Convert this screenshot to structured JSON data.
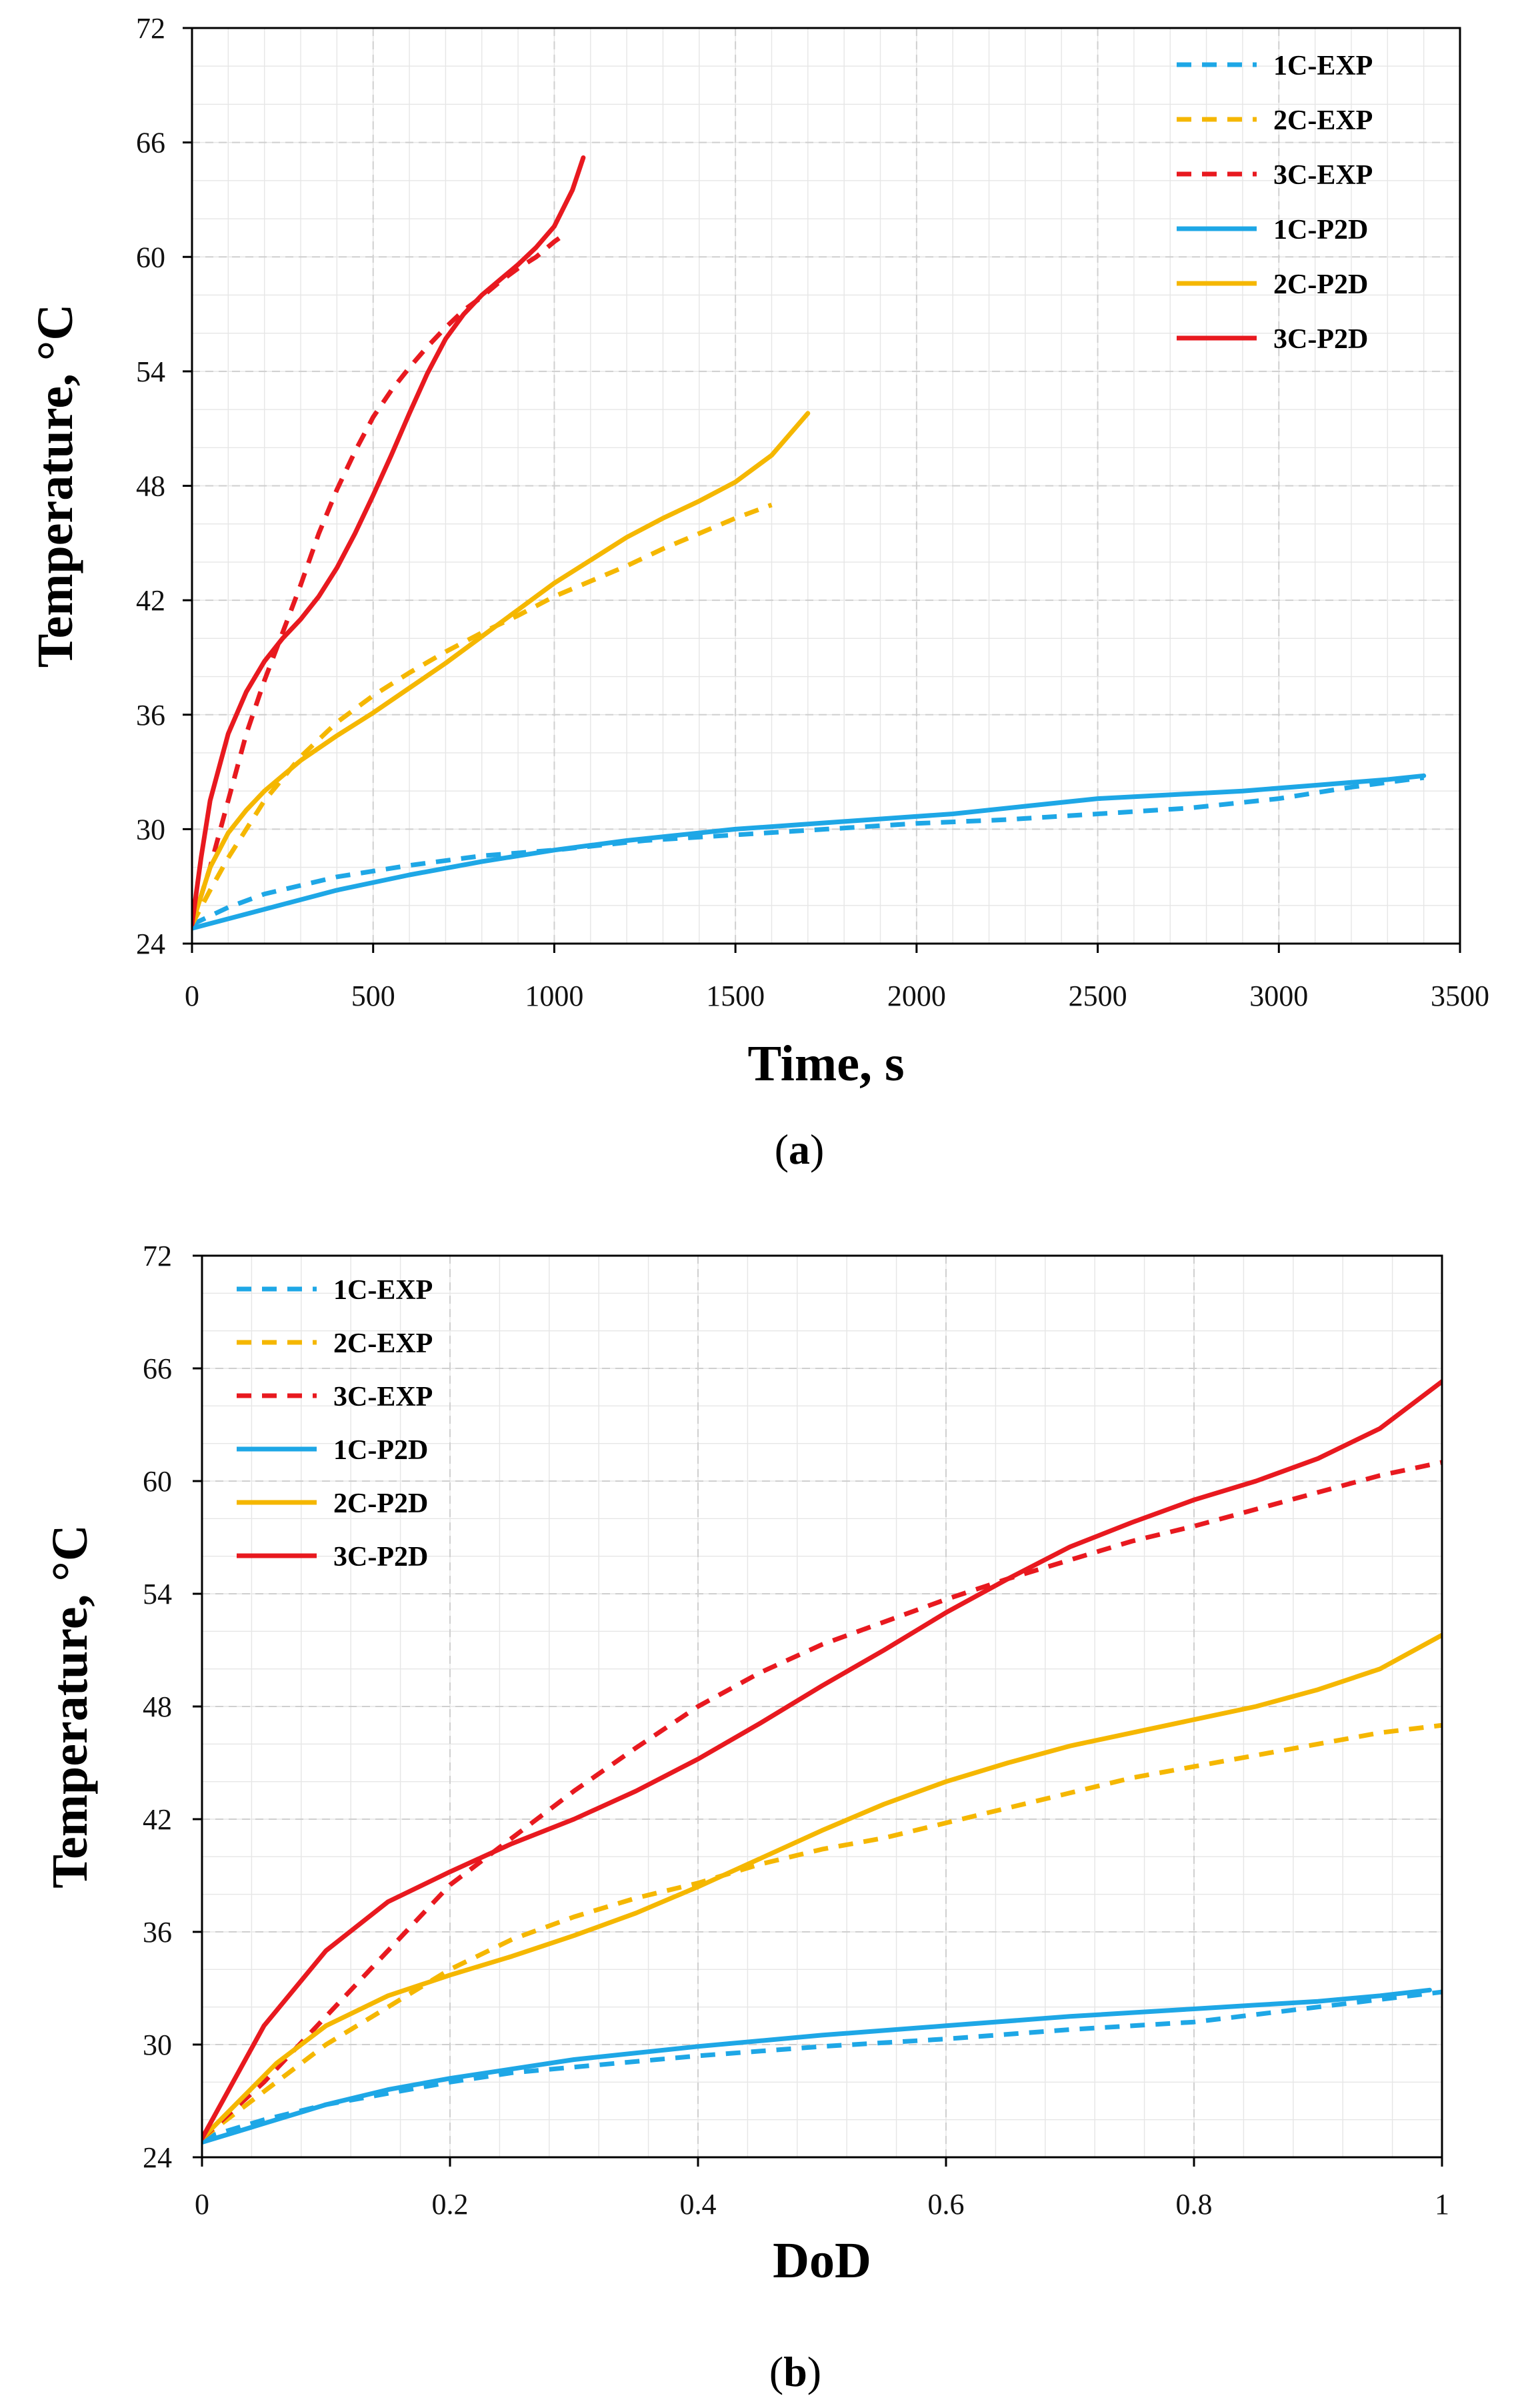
{
  "colors": {
    "1C": "#1ea7e6",
    "2C": "#f5b700",
    "3C": "#e8191f"
  },
  "chart_data": [
    {
      "type": "line",
      "panel_label": "(a)",
      "caption": {
        "open": "(",
        "letter": "a",
        "close": ")"
      },
      "xlabel": "Time, s",
      "ylabel": "Temperature, °C",
      "xlim": [
        0,
        3500
      ],
      "ylim": [
        24,
        72
      ],
      "xticks": [
        0,
        500,
        1000,
        1500,
        2000,
        2500,
        3000,
        3500
      ],
      "yticks": [
        24,
        30,
        36,
        42,
        48,
        54,
        60,
        66,
        72
      ],
      "xminor": 100,
      "yminor": 2,
      "grid": true,
      "legend_position": "top-right",
      "series": [
        {
          "name": "1C-EXP",
          "color_key": "1C",
          "style": "dashed",
          "x": [
            0,
            100,
            200,
            400,
            600,
            800,
            1000,
            1250,
            1500,
            1750,
            2000,
            2250,
            2500,
            2750,
            3000,
            3200,
            3400
          ],
          "y": [
            25.0,
            25.9,
            26.6,
            27.5,
            28.1,
            28.6,
            28.9,
            29.4,
            29.7,
            30.0,
            30.3,
            30.5,
            30.8,
            31.1,
            31.6,
            32.2,
            32.7
          ]
        },
        {
          "name": "2C-EXP",
          "color_key": "2C",
          "style": "dashed",
          "x": [
            0,
            50,
            100,
            150,
            200,
            300,
            400,
            500,
            600,
            700,
            800,
            900,
            1000,
            1100,
            1200,
            1300,
            1400,
            1500,
            1600
          ],
          "y": [
            25.0,
            26.8,
            28.5,
            30.0,
            31.5,
            33.8,
            35.6,
            37.0,
            38.2,
            39.3,
            40.3,
            41.2,
            42.2,
            43.0,
            43.8,
            44.7,
            45.5,
            46.3,
            47.0
          ]
        },
        {
          "name": "3C-EXP",
          "color_key": "3C",
          "style": "dashed",
          "x": [
            0,
            50,
            100,
            150,
            200,
            250,
            300,
            350,
            400,
            450,
            500,
            550,
            600,
            650,
            700,
            750,
            800,
            850,
            900,
            950,
            1000,
            1030
          ],
          "y": [
            25.0,
            28.0,
            31.5,
            35.0,
            37.8,
            40.3,
            42.8,
            45.5,
            47.8,
            49.8,
            51.6,
            53.0,
            54.2,
            55.3,
            56.3,
            57.2,
            57.9,
            58.7,
            59.4,
            60.0,
            60.8,
            61.2
          ]
        },
        {
          "name": "1C-P2D",
          "color_key": "1C",
          "style": "solid",
          "x": [
            0,
            200,
            400,
            600,
            800,
            1000,
            1200,
            1500,
            1800,
            2100,
            2300,
            2500,
            2700,
            2900,
            3100,
            3300,
            3400
          ],
          "y": [
            24.8,
            25.8,
            26.8,
            27.6,
            28.3,
            28.9,
            29.4,
            30.0,
            30.4,
            30.8,
            31.2,
            31.6,
            31.8,
            32.0,
            32.3,
            32.6,
            32.8
          ]
        },
        {
          "name": "2C-P2D",
          "color_key": "2C",
          "style": "solid",
          "x": [
            0,
            50,
            100,
            150,
            200,
            300,
            400,
            500,
            600,
            700,
            800,
            900,
            1000,
            1100,
            1200,
            1300,
            1400,
            1500,
            1600,
            1700
          ],
          "y": [
            25.0,
            28.0,
            29.8,
            31.0,
            32.0,
            33.6,
            34.9,
            36.1,
            37.4,
            38.7,
            40.1,
            41.5,
            42.9,
            44.1,
            45.3,
            46.3,
            47.2,
            48.2,
            49.6,
            51.8
          ]
        },
        {
          "name": "3C-P2D",
          "color_key": "3C",
          "style": "solid",
          "x": [
            0,
            25,
            50,
            100,
            150,
            200,
            250,
            300,
            350,
            400,
            450,
            500,
            550,
            600,
            650,
            700,
            750,
            800,
            850,
            900,
            950,
            1000,
            1050,
            1080
          ],
          "y": [
            25.0,
            28.5,
            31.5,
            35.0,
            37.2,
            38.8,
            40.0,
            41.0,
            42.2,
            43.7,
            45.5,
            47.5,
            49.6,
            51.8,
            53.9,
            55.7,
            57.0,
            58.0,
            58.8,
            59.6,
            60.5,
            61.6,
            63.5,
            65.2
          ]
        }
      ]
    },
    {
      "type": "line",
      "panel_label": "(b)",
      "caption": {
        "open": "(",
        "letter": "b",
        "close": ")"
      },
      "xlabel": "DoD",
      "ylabel": "Temperature, °C",
      "xlim": [
        0,
        1
      ],
      "ylim": [
        24,
        72
      ],
      "xticks": [
        0,
        0.2,
        0.4,
        0.6,
        0.8,
        1
      ],
      "yticks": [
        24,
        30,
        36,
        42,
        48,
        54,
        60,
        66,
        72
      ],
      "xminor": 0.04,
      "yminor": 2,
      "grid": true,
      "legend_position": "top-left",
      "series": [
        {
          "name": "1C-EXP",
          "color_key": "1C",
          "style": "dashed",
          "x": [
            0,
            0.05,
            0.1,
            0.15,
            0.2,
            0.25,
            0.3,
            0.4,
            0.5,
            0.6,
            0.7,
            0.8,
            0.85,
            0.9,
            0.95,
            1.0
          ],
          "y": [
            25.0,
            26.0,
            26.8,
            27.4,
            28.0,
            28.5,
            28.8,
            29.4,
            29.9,
            30.3,
            30.8,
            31.2,
            31.6,
            32.0,
            32.4,
            32.8
          ]
        },
        {
          "name": "2C-EXP",
          "color_key": "2C",
          "style": "dashed",
          "x": [
            0,
            0.03,
            0.06,
            0.1,
            0.15,
            0.2,
            0.25,
            0.3,
            0.35,
            0.4,
            0.45,
            0.5,
            0.55,
            0.6,
            0.65,
            0.7,
            0.75,
            0.8,
            0.85,
            0.9,
            0.95,
            1.0
          ],
          "y": [
            25.0,
            26.5,
            28.0,
            30.0,
            32.0,
            34.0,
            35.6,
            36.8,
            37.8,
            38.6,
            39.6,
            40.4,
            41.0,
            41.8,
            42.6,
            43.4,
            44.2,
            44.8,
            45.4,
            46.0,
            46.6,
            47.0
          ]
        },
        {
          "name": "3C-EXP",
          "color_key": "3C",
          "style": "dashed",
          "x": [
            0,
            0.05,
            0.1,
            0.15,
            0.2,
            0.25,
            0.3,
            0.35,
            0.4,
            0.45,
            0.5,
            0.55,
            0.6,
            0.65,
            0.7,
            0.75,
            0.8,
            0.85,
            0.9,
            0.95,
            1.0
          ],
          "y": [
            25.0,
            28.0,
            31.5,
            35.0,
            38.5,
            41.0,
            43.5,
            45.8,
            48.0,
            49.8,
            51.3,
            52.5,
            53.7,
            54.8,
            55.8,
            56.8,
            57.6,
            58.5,
            59.4,
            60.3,
            61.0
          ]
        },
        {
          "name": "1C-P2D",
          "color_key": "1C",
          "style": "solid",
          "x": [
            0,
            0.05,
            0.1,
            0.15,
            0.2,
            0.3,
            0.4,
            0.5,
            0.6,
            0.7,
            0.8,
            0.85,
            0.9,
            0.95,
            0.99
          ],
          "y": [
            24.8,
            25.8,
            26.8,
            27.6,
            28.2,
            29.2,
            29.9,
            30.5,
            31.0,
            31.5,
            31.9,
            32.1,
            32.3,
            32.6,
            32.9
          ]
        },
        {
          "name": "2C-P2D",
          "color_key": "2C",
          "style": "solid",
          "x": [
            0,
            0.03,
            0.06,
            0.1,
            0.15,
            0.2,
            0.25,
            0.3,
            0.35,
            0.4,
            0.45,
            0.5,
            0.55,
            0.6,
            0.65,
            0.7,
            0.75,
            0.8,
            0.85,
            0.9,
            0.95,
            1.0
          ],
          "y": [
            25.0,
            27.0,
            29.0,
            31.0,
            32.6,
            33.7,
            34.7,
            35.8,
            37.0,
            38.4,
            39.9,
            41.4,
            42.8,
            44.0,
            45.0,
            45.9,
            46.6,
            47.3,
            48.0,
            48.9,
            50.0,
            51.8
          ]
        },
        {
          "name": "3C-P2D",
          "color_key": "3C",
          "style": "solid",
          "x": [
            0,
            0.025,
            0.05,
            0.1,
            0.15,
            0.2,
            0.25,
            0.3,
            0.35,
            0.4,
            0.45,
            0.5,
            0.55,
            0.6,
            0.65,
            0.7,
            0.75,
            0.8,
            0.85,
            0.9,
            0.95,
            1.0
          ],
          "y": [
            25.0,
            28.0,
            31.0,
            35.0,
            37.6,
            39.2,
            40.7,
            42.0,
            43.5,
            45.2,
            47.1,
            49.1,
            51.0,
            53.0,
            54.8,
            56.5,
            57.8,
            59.0,
            60.0,
            61.2,
            62.8,
            65.3
          ]
        }
      ]
    }
  ]
}
